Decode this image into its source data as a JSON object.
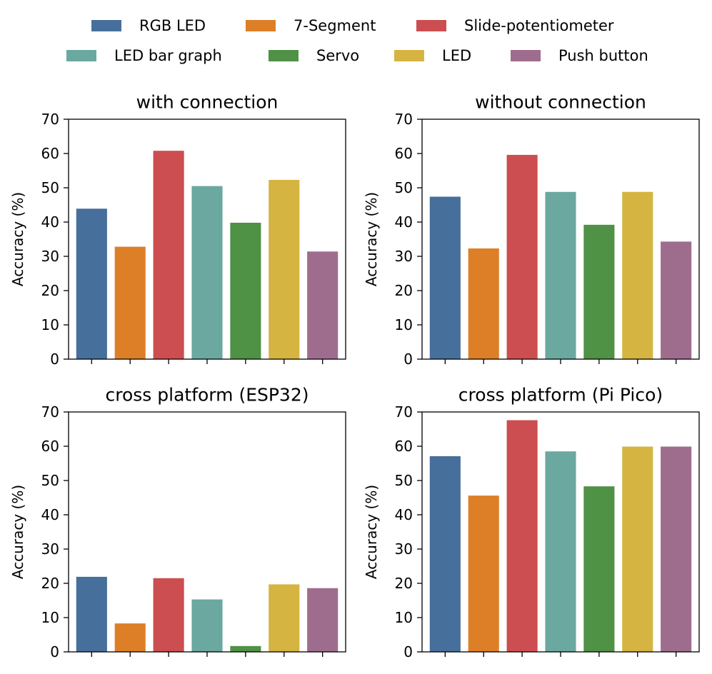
{
  "legend": {
    "items": [
      {
        "label": "RGB LED",
        "color": "#476f9b"
      },
      {
        "label": "7-Segment",
        "color": "#dd7f27"
      },
      {
        "label": "Slide-potentiometer",
        "color": "#cc4e50"
      },
      {
        "label": "LED bar graph",
        "color": "#6aa8a0"
      },
      {
        "label": "Servo",
        "color": "#4f9145"
      },
      {
        "label": "LED",
        "color": "#d5b441"
      },
      {
        "label": "Push button",
        "color": "#9e6d8d"
      }
    ]
  },
  "chart_data": [
    {
      "type": "bar",
      "title": "with connection",
      "ylabel": "Accuracy (%)",
      "xlabel": "",
      "ylim": [
        0,
        70
      ],
      "yticks": [
        "0",
        "10",
        "20",
        "30",
        "40",
        "50",
        "60",
        "70"
      ],
      "categories": [
        "RGB LED",
        "7-Segment",
        "Slide-potentiometer",
        "LED bar graph",
        "Servo",
        "LED",
        "Push button"
      ],
      "values": [
        43.9,
        32.8,
        60.8,
        50.5,
        39.8,
        52.3,
        31.4
      ]
    },
    {
      "type": "bar",
      "title": "without connection",
      "ylabel": "Accuracy (%)",
      "xlabel": "",
      "ylim": [
        0,
        70
      ],
      "yticks": [
        "0",
        "10",
        "20",
        "30",
        "40",
        "50",
        "60",
        "70"
      ],
      "categories": [
        "RGB LED",
        "7-Segment",
        "Slide-potentiometer",
        "LED bar graph",
        "Servo",
        "LED",
        "Push button"
      ],
      "values": [
        47.4,
        32.3,
        59.6,
        48.8,
        39.2,
        48.8,
        34.3
      ]
    },
    {
      "type": "bar",
      "title": "cross platform (ESP32)",
      "ylabel": "Accuracy (%)",
      "xlabel": "",
      "ylim": [
        0,
        70
      ],
      "yticks": [
        "0",
        "10",
        "20",
        "30",
        "40",
        "50",
        "60",
        "70"
      ],
      "categories": [
        "RGB LED",
        "7-Segment",
        "Slide-potentiometer",
        "LED bar graph",
        "Servo",
        "LED",
        "Push button"
      ],
      "values": [
        21.9,
        8.3,
        21.5,
        15.3,
        1.7,
        19.7,
        18.6
      ]
    },
    {
      "type": "bar",
      "title": "cross platform (Pi Pico)",
      "ylabel": "Accuracy (%)",
      "xlabel": "",
      "ylim": [
        0,
        70
      ],
      "yticks": [
        "0",
        "10",
        "20",
        "30",
        "40",
        "50",
        "60",
        "70"
      ],
      "categories": [
        "RGB LED",
        "7-Segment",
        "Slide-potentiometer",
        "LED bar graph",
        "Servo",
        "LED",
        "Push button"
      ],
      "values": [
        57.1,
        45.6,
        67.6,
        58.5,
        48.3,
        59.9,
        59.9
      ]
    }
  ]
}
